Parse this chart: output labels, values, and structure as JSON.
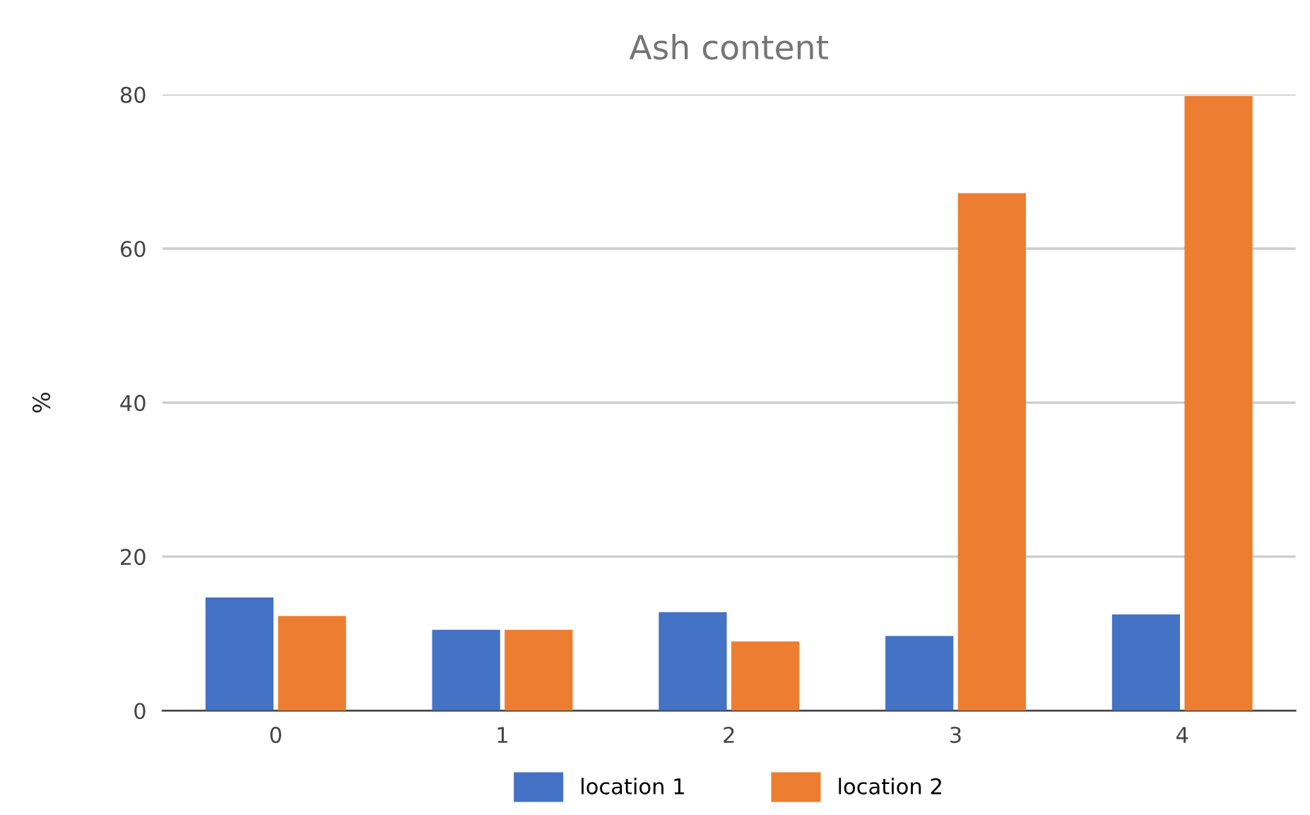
{
  "chart_data": {
    "type": "bar",
    "title": "Ash content",
    "ylabel": "%",
    "categories": [
      "0",
      "1",
      "2",
      "3",
      "4"
    ],
    "series": [
      {
        "name": "location 1",
        "color": "#4472c4",
        "values": [
          14.7,
          10.5,
          12.8,
          9.7,
          12.5
        ]
      },
      {
        "name": "location 2",
        "color": "#ed7d31",
        "values": [
          12.3,
          10.5,
          9.0,
          67.2,
          79.8
        ]
      }
    ],
    "ylim": [
      0,
      80
    ],
    "yticks": [
      0,
      20,
      40,
      60,
      80
    ],
    "grid": "y",
    "legend": "bottom"
  }
}
